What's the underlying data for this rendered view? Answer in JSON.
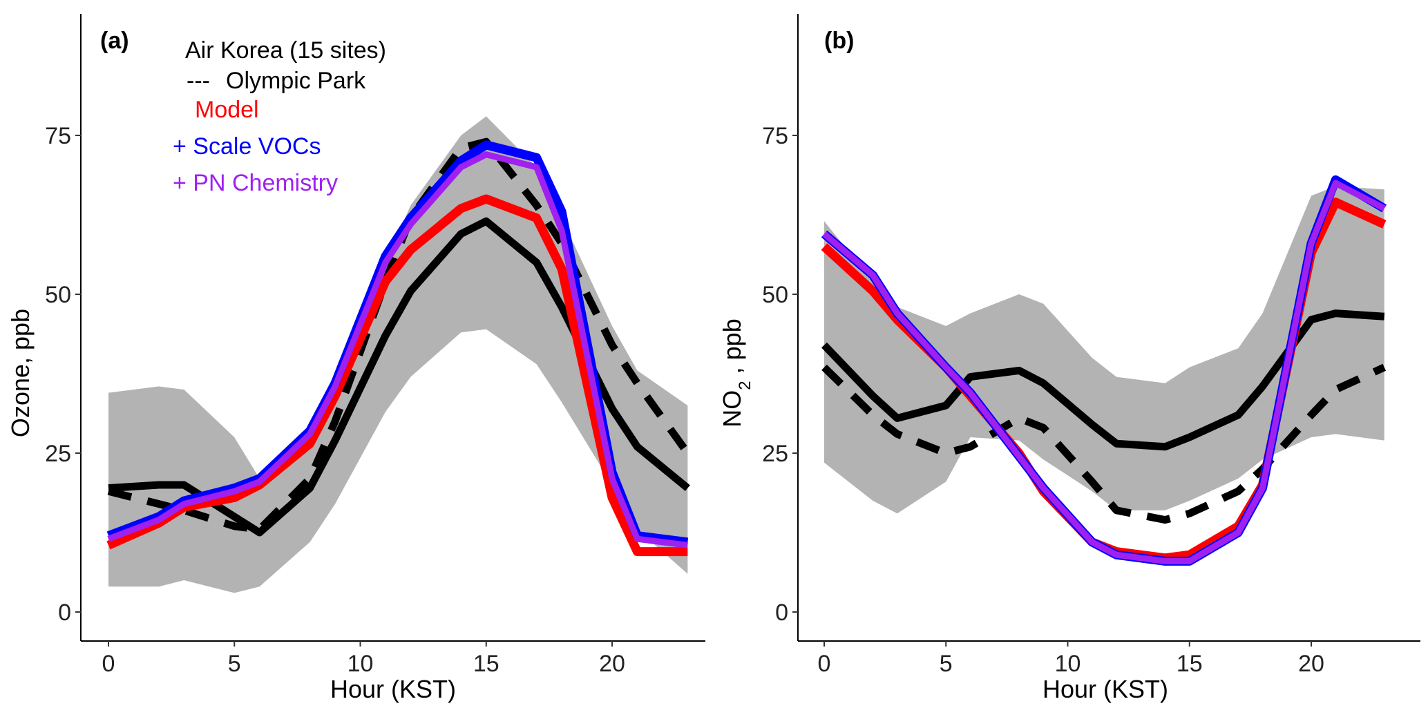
{
  "colors": {
    "shade": "#b3b3b3",
    "obs": "#000000",
    "model": "#ff0000",
    "scale_vocs": "#0000ff",
    "pn_chem": "#a020f0"
  },
  "legend": {
    "air_korea": "Air Korea (15 sites)",
    "olympic_dash": "---",
    "olympic": "Olympic Park",
    "model": "Model",
    "scale_vocs": "+ Scale VOCs",
    "pn_chem": "+ PN Chemistry"
  },
  "chart_data": [
    {
      "type": "line",
      "panel_label": "(a)",
      "xlabel": "Hour (KST)",
      "ylabel": "Ozone, ppb",
      "xlim": [
        0,
        23
      ],
      "ylim": [
        0,
        90
      ],
      "xticks": [
        0,
        5,
        10,
        15,
        20
      ],
      "yticks": [
        0,
        25,
        50,
        75
      ],
      "x": [
        0,
        2,
        3,
        5,
        6,
        8,
        9,
        11,
        12,
        14,
        15,
        17,
        18,
        20,
        21,
        23
      ],
      "band": {
        "name": "Air Korea range",
        "upper": [
          34.5,
          35.5,
          35,
          27.5,
          21,
          28,
          37,
          55,
          64,
          75,
          78,
          70,
          62,
          45,
          38,
          32.5
        ],
        "lower": [
          4,
          4,
          5,
          3,
          4,
          11,
          17,
          31.5,
          37,
          44,
          44.5,
          39,
          33,
          20,
          13,
          6
        ]
      },
      "series": [
        {
          "name": "Air Korea (15 sites)",
          "style": "solid",
          "values": [
            19.5,
            20,
            20,
            15,
            12.5,
            19.5,
            27,
            43.5,
            50.5,
            59.5,
            61.5,
            55,
            48,
            32,
            26,
            19.5
          ]
        },
        {
          "name": "Olympic Park",
          "style": "dashed",
          "values": [
            19,
            17,
            16,
            13.5,
            13,
            21,
            30,
            52,
            62,
            73,
            74,
            64,
            58,
            42,
            36,
            25
          ]
        },
        {
          "name": "Model",
          "style": "model",
          "values": [
            10.5,
            14,
            16.5,
            18,
            20,
            26.5,
            34,
            52,
            57,
            63.5,
            65,
            62,
            54,
            18,
            9.5,
            9.5
          ]
        },
        {
          "name": "+ Scale VOCs",
          "style": "scale_vocs",
          "values": [
            12,
            15,
            17.5,
            19.5,
            21,
            28.5,
            36,
            56,
            62,
            71,
            73.5,
            71.5,
            63,
            22,
            12,
            11
          ]
        },
        {
          "name": "+ PN Chemistry",
          "style": "pn_chem",
          "values": [
            11.5,
            14.5,
            17,
            19,
            20.5,
            28,
            35.5,
            55,
            61,
            70,
            72,
            70,
            60,
            21,
            11.5,
            10.5
          ]
        }
      ]
    },
    {
      "type": "line",
      "panel_label": "(b)",
      "xlabel": "Hour (KST)",
      "ylabel": "NO",
      "ylabel_sub": "2",
      "ylabel_unit": ", ppb",
      "xlim": [
        0,
        23
      ],
      "ylim": [
        0,
        90
      ],
      "xticks": [
        0,
        5,
        10,
        15,
        20
      ],
      "yticks": [
        0,
        25,
        50,
        75
      ],
      "x": [
        0,
        2,
        3,
        5,
        6,
        8,
        9,
        11,
        12,
        14,
        15,
        17,
        18,
        20,
        21,
        23
      ],
      "band": {
        "name": "Air Korea range",
        "upper": [
          61.5,
          52,
          48,
          45,
          47,
          50,
          48.5,
          40,
          37,
          36,
          38.5,
          41.5,
          47,
          65.5,
          67,
          66.5
        ],
        "lower": [
          23.5,
          17.5,
          15.5,
          20.5,
          27.5,
          27,
          24,
          19,
          16,
          16,
          17.5,
          21,
          24,
          27.5,
          28,
          27
        ]
      },
      "series": [
        {
          "name": "Air Korea (15 sites)",
          "style": "solid",
          "values": [
            42,
            34,
            30.5,
            32.5,
            37,
            38,
            36,
            29.5,
            26.5,
            26,
            27.5,
            31,
            35.5,
            46,
            47,
            46.5
          ]
        },
        {
          "name": "Olympic Park",
          "style": "dashed",
          "values": [
            38.5,
            31,
            28,
            25,
            26,
            30.5,
            29,
            20.5,
            16,
            14.5,
            15.5,
            19,
            22.5,
            31,
            35,
            38.5
          ]
        },
        {
          "name": "Model",
          "style": "model",
          "values": [
            57.5,
            50.5,
            46,
            38.5,
            34,
            25,
            19,
            11,
            9.5,
            8.5,
            9,
            13.5,
            20,
            56.5,
            64.5,
            61
          ]
        },
        {
          "name": "+ Scale VOCs",
          "style": "scale_vocs",
          "values": [
            59.5,
            53,
            47,
            38.5,
            34.5,
            24.5,
            19.5,
            11,
            9,
            8,
            8,
            12.5,
            19.5,
            58,
            68,
            63.5
          ]
        },
        {
          "name": "+ PN Chemistry",
          "style": "pn_chem",
          "values": [
            59.5,
            53,
            47,
            38.5,
            34.5,
            24.5,
            19.5,
            11,
            9,
            8,
            8,
            12.5,
            19.5,
            58,
            67.5,
            63.5
          ]
        }
      ]
    }
  ]
}
